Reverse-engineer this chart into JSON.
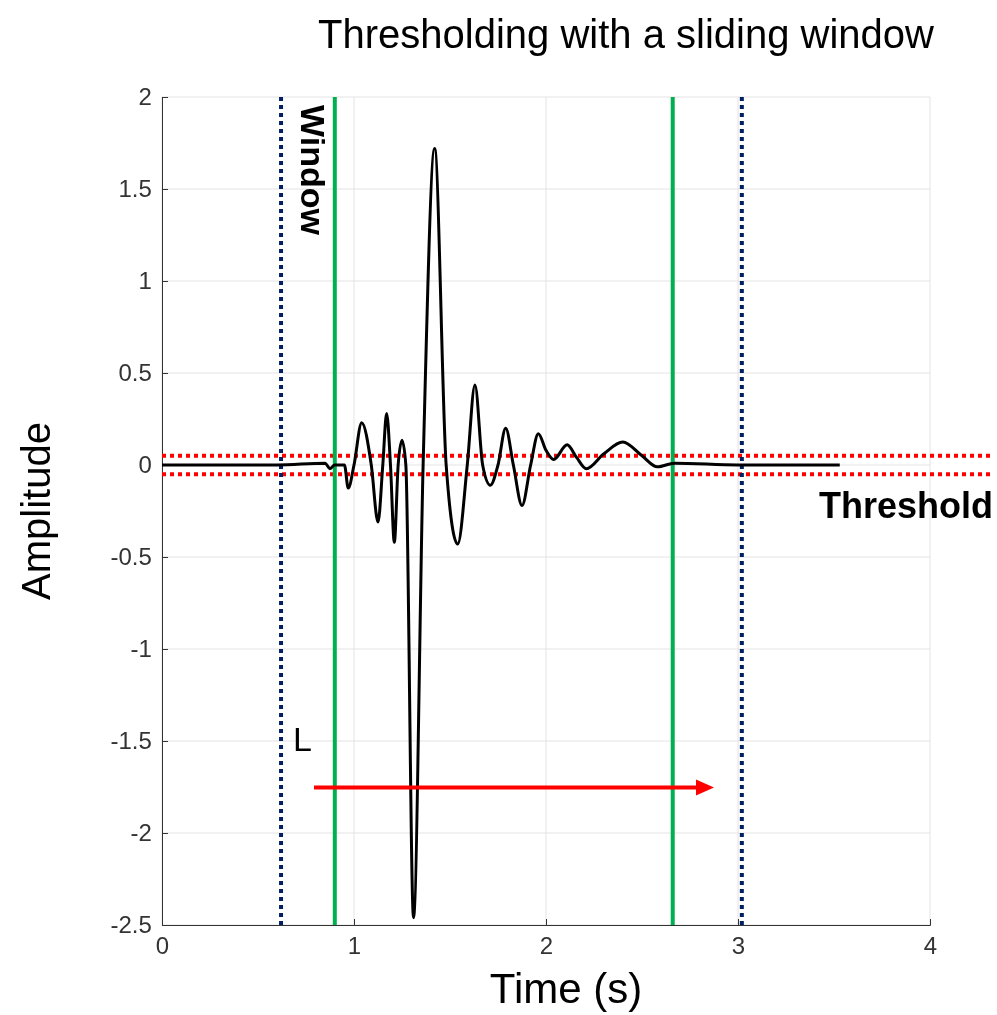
{
  "chart_data": {
    "type": "line",
    "title": "Thresholding with a sliding window",
    "xlabel": "Time (s)",
    "ylabel": "Amplitude",
    "xlim": [
      0,
      4
    ],
    "xticks": [
      0,
      1,
      2,
      3,
      4
    ],
    "ylim": [
      -2.5,
      2
    ],
    "yticks": [
      -2.5,
      -2,
      -1.5,
      -1,
      -0.5,
      0,
      0.5,
      1,
      1.5,
      2
    ],
    "grid": true,
    "marker": "none",
    "line_style": "solid",
    "series": [
      {
        "color": "#000000",
        "x": [
          0,
          0.3,
          0.6,
          0.85,
          0.875,
          0.9,
          0.95,
          0.97,
          1.0,
          1.04,
          1.09,
          1.125,
          1.15,
          1.17,
          1.19,
          1.21,
          1.23,
          1.25,
          1.27,
          1.31,
          1.36,
          1.42,
          1.48,
          1.54,
          1.59,
          1.63,
          1.67,
          1.71,
          1.75,
          1.79,
          1.83,
          1.875,
          1.92,
          1.96,
          2.0,
          2.04,
          2.11,
          2.16,
          2.21,
          2.3,
          2.4,
          2.5,
          2.58,
          2.67,
          3.0,
          3.53
        ],
        "values": [
          0,
          0,
          0,
          0.01,
          -0.02,
          0,
          0,
          -0.125,
          0,
          0.23,
          0,
          -0.31,
          0,
          0.28,
          0,
          -0.42,
          0,
          0.135,
          0,
          -2.46,
          0,
          1.72,
          0,
          -0.43,
          0,
          0.435,
          0,
          -0.11,
          0,
          0.2,
          0,
          -0.22,
          0,
          0.17,
          0.08,
          0.03,
          0.11,
          0.04,
          -0.02,
          0.06,
          0.125,
          0.05,
          -0.01,
          0.01,
          0,
          0
        ]
      }
    ],
    "ref_lines": [
      {
        "axis": "y",
        "value": 0.05,
        "label": "Threshold",
        "color": "#ff0000",
        "line_style": "dotted"
      },
      {
        "axis": "y",
        "value": -0.05,
        "color": "#ff0000",
        "line_style": "dotted"
      },
      {
        "axis": "x",
        "value": 0.62,
        "label": "L",
        "color": "#002060",
        "line_style": "dotted"
      },
      {
        "axis": "x",
        "value": 0.9,
        "label": "Window",
        "color": "#00b050",
        "line_style": "solid"
      },
      {
        "axis": "x",
        "value": 2.66,
        "color": "#00b050",
        "line_style": "solid"
      },
      {
        "axis": "x",
        "value": 3.02,
        "color": "#002060",
        "line_style": "dotted"
      }
    ]
  }
}
